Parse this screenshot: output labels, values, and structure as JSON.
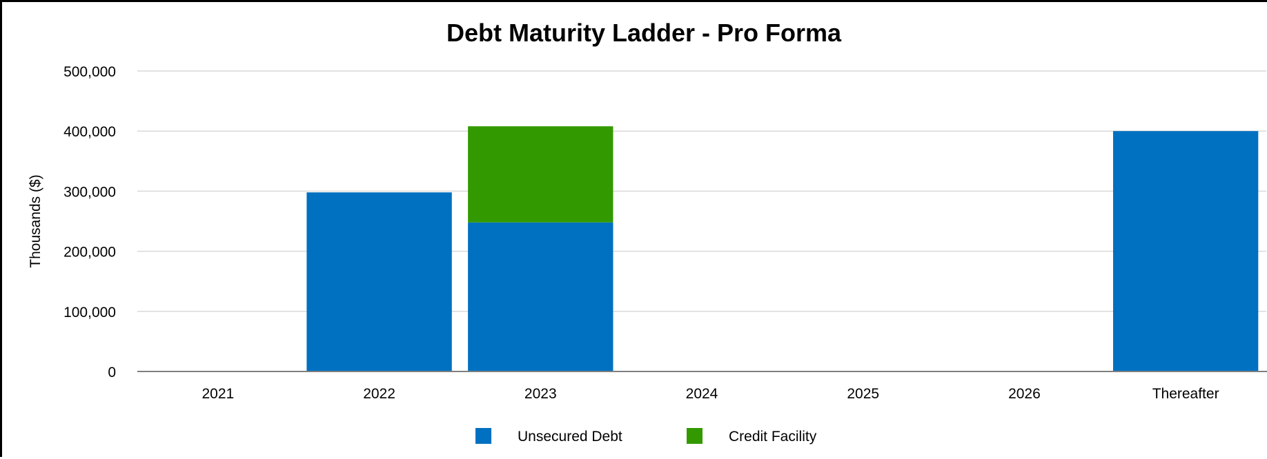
{
  "chart_data": {
    "type": "bar",
    "stacked": true,
    "title": "Debt Maturity Ladder - Pro Forma",
    "xlabel": "",
    "ylabel": "Thousands ($)",
    "categories": [
      "2021",
      "2022",
      "2023",
      "2024",
      "2025",
      "2026",
      "Thereafter"
    ],
    "series": [
      {
        "name": "Unsecured Debt",
        "color": "#0070c0",
        "values": [
          0,
          298000,
          248000,
          0,
          0,
          0,
          400000
        ]
      },
      {
        "name": "Credit Facility",
        "color": "#339900",
        "values": [
          0,
          0,
          160000,
          0,
          0,
          0,
          0
        ]
      }
    ],
    "ylim": [
      0,
      500000
    ],
    "yticks": [
      "0",
      "100,000",
      "200,000",
      "300,000",
      "400,000",
      "500,000"
    ],
    "grid": true,
    "legend": "bottom-center"
  }
}
